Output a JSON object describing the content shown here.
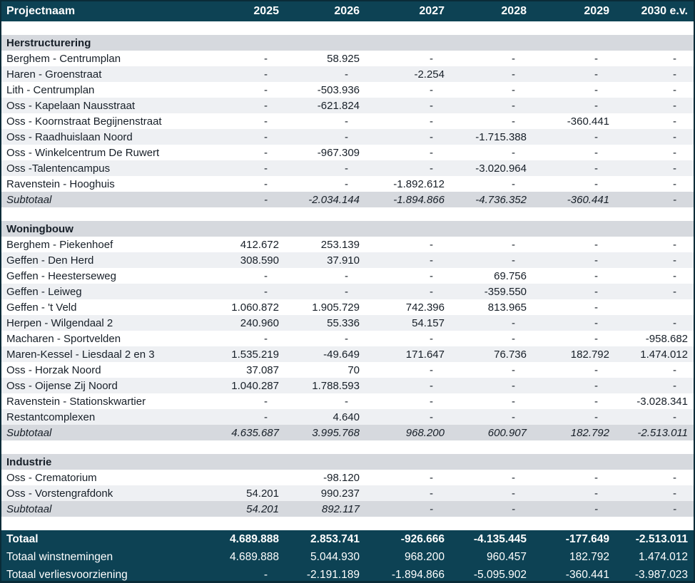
{
  "colors": {
    "header_bg": "#0d4254",
    "section_bg": "#d6d9de",
    "band_bg": "#eef0f3",
    "total_bg": "#0d4254",
    "text": "#171f28",
    "header_text": "#ffffff"
  },
  "table": {
    "header": {
      "name_col": "Projectnaam",
      "year_cols": [
        "2025",
        "2026",
        "2027",
        "2028",
        "2029",
        "2030 e.v."
      ]
    },
    "sections": [
      {
        "title": "Herstructurering",
        "rows": [
          {
            "name": "Berghem - Centrumplan",
            "values": [
              "-",
              "58.925",
              "-",
              "-",
              "-",
              "-"
            ]
          },
          {
            "name": "Haren - Groenstraat",
            "values": [
              "-",
              "-",
              "-2.254",
              "-",
              "-",
              "-"
            ]
          },
          {
            "name": "Lith - Centrumplan",
            "values": [
              "-",
              "-503.936",
              "-",
              "-",
              "-",
              "-"
            ]
          },
          {
            "name": "Oss - Kapelaan Nausstraat",
            "values": [
              "-",
              "-621.824",
              "-",
              "-",
              "-",
              "-"
            ]
          },
          {
            "name": "Oss - Koornstraat Begijnenstraat",
            "values": [
              "-",
              "-",
              "-",
              "-",
              "-360.441",
              "-"
            ]
          },
          {
            "name": "Oss - Raadhuislaan Noord",
            "values": [
              "-",
              "-",
              "-",
              "-1.715.388",
              "-",
              "-"
            ]
          },
          {
            "name": "Oss - Winkelcentrum De Ruwert",
            "values": [
              "-",
              "-967.309",
              "-",
              "-",
              "-",
              "-"
            ]
          },
          {
            "name": "Oss -Talentencampus",
            "values": [
              "-",
              "-",
              "-",
              "-3.020.964",
              "-",
              "-"
            ]
          },
          {
            "name": "Ravenstein - Hooghuis",
            "values": [
              "-",
              "-",
              "-1.892.612",
              "-",
              "-",
              "-"
            ]
          }
        ],
        "subtotal": {
          "label": "Subtotaal",
          "values": [
            "-",
            "-2.034.144",
            "-1.894.866",
            "-4.736.352",
            "-360.441",
            "-"
          ]
        }
      },
      {
        "title": "Woningbouw",
        "rows": [
          {
            "name": "Berghem - Piekenhoef",
            "values": [
              "412.672",
              "253.139",
              "-",
              "-",
              "-",
              "-"
            ]
          },
          {
            "name": "Geffen - Den Herd",
            "values": [
              "308.590",
              "37.910",
              "-",
              "-",
              "-",
              "-"
            ]
          },
          {
            "name": "Geffen - Heesterseweg",
            "values": [
              "-",
              "-",
              "-",
              "69.756",
              "-",
              "-"
            ]
          },
          {
            "name": "Geffen - Leiweg",
            "values": [
              "-",
              "-",
              "-",
              "-359.550",
              "-",
              "-"
            ]
          },
          {
            "name": "Geffen - 't Veld",
            "values": [
              "1.060.872",
              "1.905.729",
              "742.396",
              "813.965",
              "-",
              ""
            ]
          },
          {
            "name": "Herpen - Wilgendaal 2",
            "values": [
              "240.960",
              "55.336",
              "54.157",
              "-",
              "-",
              "-"
            ]
          },
          {
            "name": "Macharen - Sportvelden",
            "values": [
              "-",
              "-",
              "-",
              "-",
              "-",
              "-958.682"
            ]
          },
          {
            "name": "Maren-Kessel - Liesdaal 2 en 3",
            "values": [
              "1.535.219",
              "-49.649",
              "171.647",
              "76.736",
              "182.792",
              "1.474.012"
            ]
          },
          {
            "name": "Oss - Horzak Noord",
            "values": [
              "37.087",
              "70",
              "-",
              "-",
              "-",
              "-"
            ]
          },
          {
            "name": "Oss - Oijense Zij Noord",
            "values": [
              "1.040.287",
              "1.788.593",
              "-",
              "-",
              "-",
              "-"
            ]
          },
          {
            "name": "Ravenstein - Stationskwartier",
            "values": [
              "-",
              "-",
              "-",
              "-",
              "-",
              "-3.028.341"
            ]
          },
          {
            "name": "Restantcomplexen",
            "values": [
              "-",
              "4.640",
              "-",
              "-",
              "-",
              "-"
            ]
          }
        ],
        "subtotal": {
          "label": "Subtotaal",
          "values": [
            "4.635.687",
            "3.995.768",
            "968.200",
            "600.907",
            "182.792",
            "-2.513.011"
          ]
        }
      },
      {
        "title": "Industrie",
        "rows": [
          {
            "name": "Oss - Crematorium",
            "values": [
              "",
              "-98.120",
              "-",
              "-",
              "-",
              "-"
            ]
          },
          {
            "name": "Oss - Vorstengrafdonk",
            "values": [
              "54.201",
              "990.237",
              "-",
              "-",
              "-",
              "-"
            ]
          }
        ],
        "subtotal": {
          "label": "Subtotaal",
          "values": [
            "54.201",
            "892.117",
            "-",
            "-",
            "-",
            "-"
          ]
        }
      }
    ],
    "totals": [
      {
        "label": "Totaal",
        "values": [
          "4.689.888",
          "2.853.741",
          "-926.666",
          "-4.135.445",
          "-177.649",
          "-2.513.011"
        ]
      },
      {
        "label": "Totaal winstnemingen",
        "values": [
          "4.689.888",
          "5.044.930",
          "968.200",
          "960.457",
          "182.792",
          "1.474.012"
        ]
      },
      {
        "label": "Totaal verliesvoorziening",
        "values": [
          "-",
          "-2.191.189",
          "-1.894.866",
          "-5.095.902",
          "-360.441",
          "-3.987.023"
        ]
      }
    ]
  }
}
